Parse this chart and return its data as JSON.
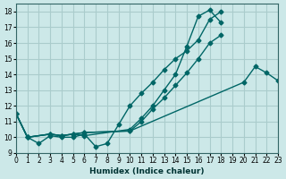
{
  "background_color": "#cce8e8",
  "grid_color": "#aacccc",
  "line_color": "#006666",
  "xlabel": "Humidex (Indice chaleur)",
  "xlim": [
    0,
    23
  ],
  "ylim": [
    9,
    18.5
  ],
  "xticks": [
    0,
    1,
    2,
    3,
    4,
    5,
    6,
    7,
    8,
    9,
    10,
    11,
    12,
    13,
    14,
    15,
    16,
    17,
    18,
    19,
    20,
    21,
    22,
    23
  ],
  "yticks": [
    9,
    10,
    11,
    12,
    13,
    14,
    15,
    16,
    17,
    18
  ],
  "line1_x": [
    0,
    1,
    2,
    3,
    4,
    5,
    6,
    7,
    8,
    9,
    10,
    11,
    12,
    13,
    14,
    15,
    16,
    17,
    18
  ],
  "line1_y": [
    11.5,
    10.0,
    9.6,
    10.1,
    10.0,
    10.0,
    10.2,
    9.4,
    9.6,
    10.8,
    12.0,
    12.8,
    13.5,
    14.3,
    15.0,
    15.5,
    16.2,
    17.5,
    18.0
  ],
  "line2_x": [
    0,
    1,
    3,
    4,
    5,
    6,
    10,
    11,
    12,
    13,
    14,
    15,
    16,
    17,
    18
  ],
  "line2_y": [
    11.5,
    10.0,
    10.2,
    10.1,
    10.2,
    10.1,
    10.5,
    11.2,
    12.0,
    13.0,
    14.0,
    15.8,
    17.7,
    18.1,
    17.3
  ],
  "line3_x": [
    0,
    1,
    3,
    4,
    5,
    6,
    10,
    11,
    12,
    13,
    14,
    15,
    16,
    17,
    18
  ],
  "line3_y": [
    11.5,
    10.0,
    10.2,
    10.1,
    10.2,
    10.3,
    10.4,
    11.0,
    11.8,
    12.5,
    13.3,
    14.1,
    15.0,
    16.0,
    16.5
  ],
  "line4_x": [
    0,
    1,
    3,
    4,
    5,
    6,
    10,
    20,
    21,
    22,
    23
  ],
  "line4_y": [
    11.5,
    10.0,
    10.2,
    10.1,
    10.2,
    10.3,
    10.4,
    13.5,
    14.5,
    14.1,
    13.6
  ]
}
